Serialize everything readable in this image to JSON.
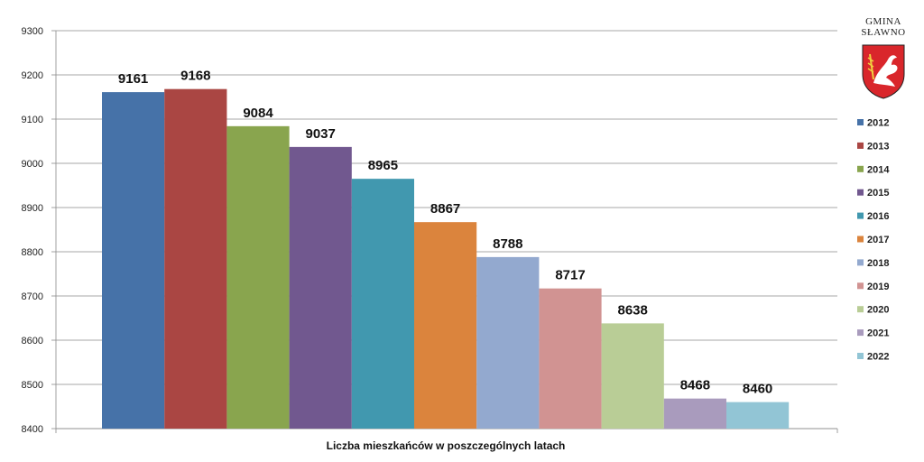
{
  "logo": {
    "line1": "GMINA",
    "line2": "SŁAWNO"
  },
  "chart_data": {
    "type": "bar",
    "categories": [
      "2012",
      "2013",
      "2014",
      "2015",
      "2016",
      "2017",
      "2018",
      "2019",
      "2020",
      "2021",
      "2022"
    ],
    "values": [
      9161,
      9168,
      9084,
      9037,
      8965,
      8867,
      8788,
      8717,
      8638,
      8468,
      8460
    ],
    "colors": [
      "#4672a8",
      "#aa4643",
      "#89a54e",
      "#71588f",
      "#4198af",
      "#db843d",
      "#93a9cf",
      "#d19392",
      "#b9cd96",
      "#a99bbd",
      "#92c5d5"
    ],
    "xlabel": "Liczba mieszkańców w poszczególnych latach",
    "ylabel": "",
    "ylim": [
      8400,
      9300
    ],
    "yticks": [
      "8400",
      "8500",
      "8600",
      "8700",
      "8800",
      "8900",
      "9000",
      "9100",
      "9200",
      "9300"
    ],
    "grid": true,
    "legend_position": "right"
  }
}
